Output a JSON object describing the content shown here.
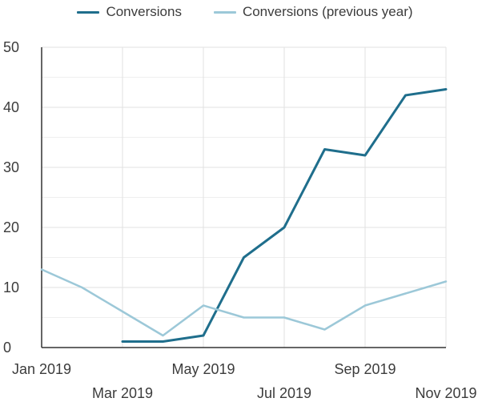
{
  "chart_data": {
    "type": "line",
    "title": "",
    "xlabel": "",
    "ylabel": "",
    "categories": [
      "Jan 2019",
      "Feb 2019",
      "Mar 2019",
      "Apr 2019",
      "May 2019",
      "Jun 2019",
      "Jul 2019",
      "Aug 2019",
      "Sep 2019",
      "Oct 2019",
      "Nov 2019"
    ],
    "x_tick_labels": [
      "Jan 2019",
      "Mar 2019",
      "May 2019",
      "Jul 2019",
      "Sep 2019",
      "Nov 2019"
    ],
    "y_ticks": [
      0,
      10,
      20,
      30,
      40,
      50
    ],
    "ylim": [
      0,
      50
    ],
    "grid": true,
    "legend_position": "top",
    "series": [
      {
        "name": "Conversions",
        "color": "#1f6e8c",
        "x": [
          "Mar 2019",
          "Apr 2019",
          "May 2019",
          "Jun 2019",
          "Jul 2019",
          "Aug 2019",
          "Sep 2019",
          "Oct 2019",
          "Nov 2019"
        ],
        "values": [
          1,
          1,
          2,
          15,
          20,
          33,
          32,
          42,
          43
        ]
      },
      {
        "name": "Conversions (previous year)",
        "color": "#9cc8d8",
        "x": [
          "Jan 2019",
          "Feb 2019",
          "Mar 2019",
          "Apr 2019",
          "May 2019",
          "Jun 2019",
          "Jul 2019",
          "Aug 2019",
          "Sep 2019",
          "Oct 2019",
          "Nov 2019"
        ],
        "values": [
          13,
          10,
          6,
          2,
          7,
          5,
          5,
          3,
          7,
          9,
          11
        ]
      }
    ]
  }
}
